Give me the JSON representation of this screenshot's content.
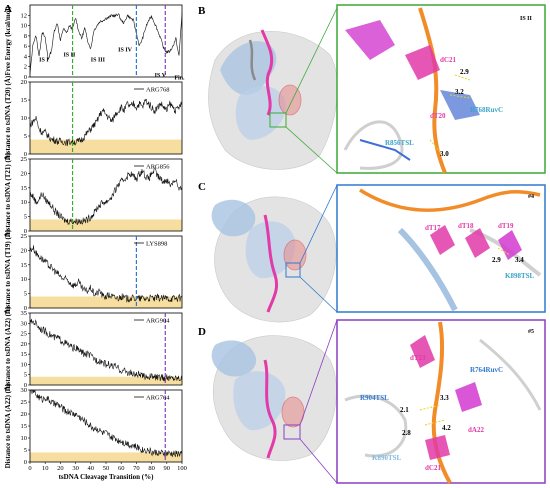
{
  "panel_letters": {
    "a": "A",
    "b": "B",
    "c": "C",
    "d": "D"
  },
  "chart_data": [
    {
      "type": "line",
      "panel": "A1",
      "ylabel": "Free Energy (kcal/mol)",
      "ylim": [
        0,
        14
      ],
      "yticks": [
        0,
        2,
        4,
        6,
        8,
        10,
        12
      ],
      "xlim": [
        0,
        100
      ],
      "x": [
        0,
        2,
        4,
        6,
        8,
        10,
        12,
        14,
        16,
        18,
        20,
        22,
        24,
        26,
        28,
        30,
        32,
        34,
        36,
        38,
        40,
        42,
        44,
        46,
        48,
        50,
        52,
        54,
        56,
        58,
        60,
        62,
        64,
        66,
        68,
        70,
        72,
        74,
        76,
        78,
        80,
        82,
        84,
        86,
        88,
        90,
        92,
        94,
        96,
        98,
        100
      ],
      "series": [
        {
          "values": [
            0.5,
            6.5,
            8.0,
            4.0,
            8.8,
            7.5,
            3.5,
            5.0,
            9.0,
            10.5,
            7.0,
            9.5,
            8.5,
            10.0,
            9.3,
            11.5,
            9.0,
            7.5,
            9.5,
            7.0,
            5.5,
            9.0,
            10.0,
            10.8,
            11.0,
            11.4,
            11.6,
            12.0,
            11.8,
            12.3,
            11.0,
            10.5,
            12.0,
            11.5,
            11.0,
            8.5,
            6.0,
            7.5,
            9.5,
            11.0,
            11.8,
            10.5,
            9.0,
            7.5,
            5.5,
            4.8,
            5.0,
            6.0,
            7.5,
            4.0,
            12.5
          ]
        }
      ],
      "state_labels": [
        "IS I",
        "IS II",
        "IS III",
        "IS IV",
        "IS V",
        "Fin."
      ],
      "vlines": [
        {
          "x": 28,
          "color": "#3aa935"
        },
        {
          "x": 70,
          "color": "#2f79d0"
        },
        {
          "x": 89,
          "color": "#8a3fc4"
        }
      ]
    },
    {
      "type": "line",
      "panel": "A2",
      "legend": "ARG768",
      "ylabel": "Distance to tsDNA (T20) (Å)",
      "ylim": [
        0,
        20
      ],
      "yticks": [
        0,
        5,
        10,
        15,
        20
      ],
      "xlim": [
        0,
        100
      ],
      "band": [
        0,
        4
      ],
      "x": [
        0,
        2,
        4,
        6,
        8,
        10,
        12,
        14,
        16,
        18,
        20,
        22,
        24,
        26,
        28,
        30,
        32,
        34,
        36,
        38,
        40,
        42,
        44,
        46,
        48,
        50,
        52,
        54,
        56,
        58,
        60,
        62,
        64,
        66,
        68,
        70,
        72,
        74,
        76,
        78,
        80,
        82,
        84,
        86,
        88,
        90,
        92,
        94,
        96,
        98,
        100
      ],
      "series": [
        {
          "values": [
            8,
            9,
            10,
            7,
            6,
            6,
            5,
            4,
            4,
            3.5,
            3.5,
            3.5,
            3.2,
            3.3,
            3.5,
            3.3,
            3.5,
            4,
            5,
            6,
            7,
            8,
            9,
            11,
            12,
            11,
            10,
            9,
            11,
            12,
            13,
            12,
            14,
            13,
            14,
            13,
            14,
            13,
            15,
            14,
            13,
            12,
            13,
            14,
            13,
            12,
            14,
            13,
            12,
            13,
            14
          ]
        }
      ],
      "vlines": [
        {
          "x": 28,
          "color": "#3aa935"
        }
      ]
    },
    {
      "type": "line",
      "panel": "A3",
      "legend": "ARG856",
      "ylabel": "Distance to tsDNA (T21) (Å)",
      "ylim": [
        0,
        25
      ],
      "yticks": [
        0,
        5,
        10,
        15,
        20,
        25
      ],
      "xlim": [
        0,
        100
      ],
      "band": [
        0,
        4
      ],
      "x": [
        0,
        2,
        4,
        6,
        8,
        10,
        12,
        14,
        16,
        18,
        20,
        22,
        24,
        26,
        28,
        30,
        32,
        34,
        36,
        38,
        40,
        42,
        44,
        46,
        48,
        50,
        52,
        54,
        56,
        58,
        60,
        62,
        64,
        66,
        68,
        70,
        72,
        74,
        76,
        78,
        80,
        82,
        84,
        86,
        88,
        90,
        92,
        94,
        96,
        98,
        100
      ],
      "series": [
        {
          "values": [
            13,
            12,
            10,
            11,
            13,
            11,
            10,
            9,
            7,
            6,
            5,
            4,
            3.5,
            3.5,
            3.5,
            3.3,
            3.5,
            3.4,
            3.5,
            4,
            5,
            6,
            8,
            9,
            10,
            10,
            11,
            12,
            14,
            16,
            17,
            18,
            19,
            20,
            19,
            18,
            20,
            21,
            19,
            18,
            20,
            21,
            19,
            18,
            17,
            18,
            16,
            17,
            18,
            14,
            15
          ]
        }
      ],
      "vlines": [
        {
          "x": 28,
          "color": "#3aa935"
        }
      ]
    },
    {
      "type": "line",
      "panel": "A4",
      "legend": "LYS898",
      "ylabel": "Distance to tsDNA (T19) (Å)",
      "ylim": [
        0,
        25
      ],
      "yticks": [
        0,
        5,
        10,
        15,
        20,
        25
      ],
      "xlim": [
        0,
        100
      ],
      "band": [
        0,
        4
      ],
      "x": [
        0,
        2,
        4,
        6,
        8,
        10,
        12,
        14,
        16,
        18,
        20,
        22,
        24,
        26,
        28,
        30,
        32,
        34,
        36,
        38,
        40,
        42,
        44,
        46,
        48,
        50,
        52,
        54,
        56,
        58,
        60,
        62,
        64,
        66,
        68,
        70,
        72,
        74,
        76,
        78,
        80,
        82,
        84,
        86,
        88,
        90,
        92,
        94,
        96,
        98,
        100
      ],
      "series": [
        {
          "values": [
            20,
            21,
            19,
            18,
            17,
            16,
            15,
            14,
            13,
            12,
            11,
            10,
            10,
            9,
            8,
            8,
            9,
            7,
            6,
            6,
            7,
            5,
            5,
            6,
            4,
            4,
            4.5,
            4,
            3.5,
            3.5,
            4,
            3.5,
            3.2,
            3.5,
            3.3,
            3.4,
            3.2,
            3.5,
            3.3,
            3.4,
            3.5,
            3.2,
            3.6,
            3.4,
            3.3,
            3.5,
            3.2,
            3.4,
            3.3,
            3.5,
            3.4
          ]
        }
      ],
      "vlines": [
        {
          "x": 70,
          "color": "#2f79d0"
        }
      ]
    },
    {
      "type": "line",
      "panel": "A5",
      "legend": "ARG904",
      "ylabel": "Distance to tsDNA (A22) (Å)",
      "ylim": [
        0,
        35
      ],
      "yticks": [
        0,
        5,
        10,
        15,
        20,
        25,
        30,
        35
      ],
      "xlim": [
        0,
        100
      ],
      "band": [
        0,
        4
      ],
      "x": [
        0,
        2,
        4,
        6,
        8,
        10,
        12,
        14,
        16,
        18,
        20,
        22,
        24,
        26,
        28,
        30,
        32,
        34,
        36,
        38,
        40,
        42,
        44,
        46,
        48,
        50,
        52,
        54,
        56,
        58,
        60,
        62,
        64,
        66,
        68,
        70,
        72,
        74,
        76,
        78,
        80,
        82,
        84,
        86,
        88,
        90,
        92,
        94,
        96,
        98,
        100
      ],
      "series": [
        {
          "values": [
            30,
            31,
            30,
            28,
            27,
            26,
            25,
            24,
            23,
            23,
            22,
            21,
            20,
            19,
            18,
            18,
            17,
            16,
            15,
            15,
            14,
            13,
            12,
            12,
            11,
            10,
            10,
            9,
            9,
            8,
            7,
            7,
            6,
            6,
            5,
            5,
            5,
            4,
            4.5,
            4,
            4,
            4,
            3.5,
            3.6,
            3.4,
            3.5,
            3.3,
            3.5,
            3.4,
            3.5,
            3.6
          ]
        }
      ],
      "vlines": [
        {
          "x": 89,
          "color": "#8a3fc4"
        }
      ]
    },
    {
      "type": "line",
      "panel": "A6",
      "legend": "ARG764",
      "ylabel": "Distance to tsDNA (A22) (Å)",
      "ylim": [
        0,
        30
      ],
      "yticks": [
        0,
        5,
        10,
        15,
        20,
        25,
        30
      ],
      "xlim": [
        0,
        100
      ],
      "xticks": [
        0,
        10,
        20,
        30,
        40,
        50,
        60,
        70,
        80,
        90,
        100
      ],
      "xlabel": "tsDNA Cleavage Transition (%)",
      "band": [
        0,
        4
      ],
      "x": [
        0,
        2,
        4,
        6,
        8,
        10,
        12,
        14,
        16,
        18,
        20,
        22,
        24,
        26,
        28,
        30,
        32,
        34,
        36,
        38,
        40,
        42,
        44,
        46,
        48,
        50,
        52,
        54,
        56,
        58,
        60,
        62,
        64,
        66,
        68,
        70,
        72,
        74,
        76,
        78,
        80,
        82,
        84,
        86,
        88,
        90,
        92,
        94,
        96,
        98,
        100
      ],
      "series": [
        {
          "values": [
            29,
            30,
            28,
            27,
            26,
            27,
            26,
            25,
            24,
            24,
            23,
            22,
            21,
            21,
            20,
            20,
            19,
            18,
            17,
            16,
            15,
            14,
            14,
            13,
            12,
            12,
            11,
            10,
            10,
            9,
            9,
            8,
            8,
            7,
            7,
            6,
            6,
            5,
            5,
            5,
            4,
            4,
            4,
            3.5,
            3.6,
            3.4,
            3.5,
            3.3,
            3.5,
            3.4,
            3.5
          ]
        }
      ],
      "vlines": [
        {
          "x": 89,
          "color": "#8a3fc4"
        }
      ]
    }
  ],
  "zoom_panels": {
    "b": {
      "tag": "IS II",
      "frame_color": "#3aa935",
      "nucleotides": [
        "dC21",
        "dT20"
      ],
      "residues": [
        "R768RuvC",
        "R856TSL"
      ],
      "distances": [
        "2.9",
        "3.2",
        "3.0"
      ]
    },
    "c": {
      "tag": "#4",
      "frame_color": "#2f79d0",
      "nucleotides": [
        "dT17",
        "dT18",
        "dT19"
      ],
      "residues": [
        "K898TSL"
      ],
      "distances": [
        "2.9",
        "3.4"
      ]
    },
    "d": {
      "tag": "#5",
      "frame_color": "#8a3fc4",
      "nucleotides": [
        "dT23",
        "dA22",
        "dC21"
      ],
      "residues": [
        "R904TSL",
        "R764RuvC",
        "K890TSL"
      ],
      "distances": [
        "2.1",
        "3.3",
        "2.8",
        "4.2"
      ]
    }
  },
  "colors": {
    "protein": "#a7c3e2",
    "rna": "#8a8a8a",
    "tsdna": "#e23aa8",
    "ntsdna": "#f28c28",
    "band": "#f5dea0",
    "surface": "#d9d9d9"
  }
}
